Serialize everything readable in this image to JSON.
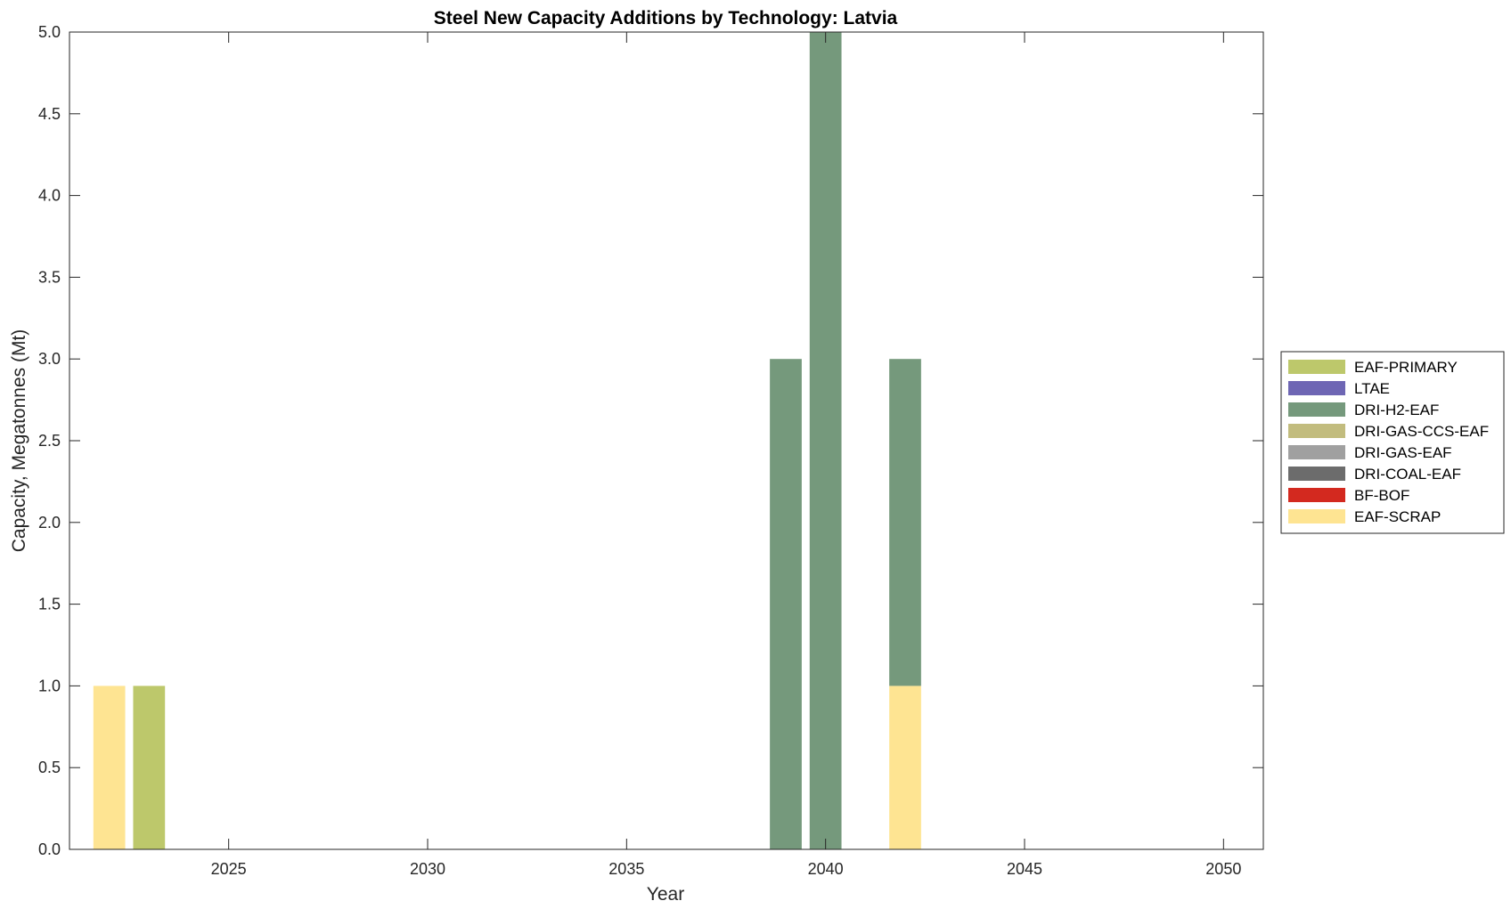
{
  "chart_data": {
    "type": "bar",
    "stacked": true,
    "title": "Steel New Capacity Additions by Technology: Latvia",
    "xlabel": "Year",
    "ylabel": "Capacity, Megatonnes (Mt)",
    "xlim": [
      2021,
      2051
    ],
    "ylim": [
      0,
      5
    ],
    "xticks": [
      "2025",
      "2030",
      "2035",
      "2040",
      "2045",
      "2050"
    ],
    "yticks": [
      "0.0",
      "0.5",
      "1.0",
      "1.5",
      "2.0",
      "2.5",
      "3.0",
      "3.5",
      "4.0",
      "4.5",
      "5.0"
    ],
    "grid": false,
    "legend_position": "right",
    "x": [
      2022,
      2023,
      2039,
      2040,
      2042
    ],
    "series": [
      {
        "name": "EAF-PRIMARY",
        "color": "#bdc86b",
        "values": [
          0,
          1,
          0,
          0,
          0
        ]
      },
      {
        "name": "LTAE",
        "color": "#6e66b4",
        "values": [
          0,
          0,
          0,
          0,
          0
        ]
      },
      {
        "name": "DRI-H2-EAF",
        "color": "#75997c",
        "values": [
          0,
          0,
          3,
          5,
          2
        ]
      },
      {
        "name": "DRI-GAS-CCS-EAF",
        "color": "#c2bc7e",
        "values": [
          0,
          0,
          0,
          0,
          0
        ]
      },
      {
        "name": "DRI-GAS-EAF",
        "color": "#a0a0a0",
        "values": [
          0,
          0,
          0,
          0,
          0
        ]
      },
      {
        "name": "DRI-COAL-EAF",
        "color": "#6c6c6c",
        "values": [
          0,
          0,
          0,
          0,
          0
        ]
      },
      {
        "name": "BF-BOF",
        "color": "#d3291f",
        "values": [
          0,
          0,
          0,
          0,
          0
        ]
      },
      {
        "name": "EAF-SCRAP",
        "color": "#fee492",
        "values": [
          1,
          0,
          0,
          0,
          1
        ]
      }
    ]
  }
}
